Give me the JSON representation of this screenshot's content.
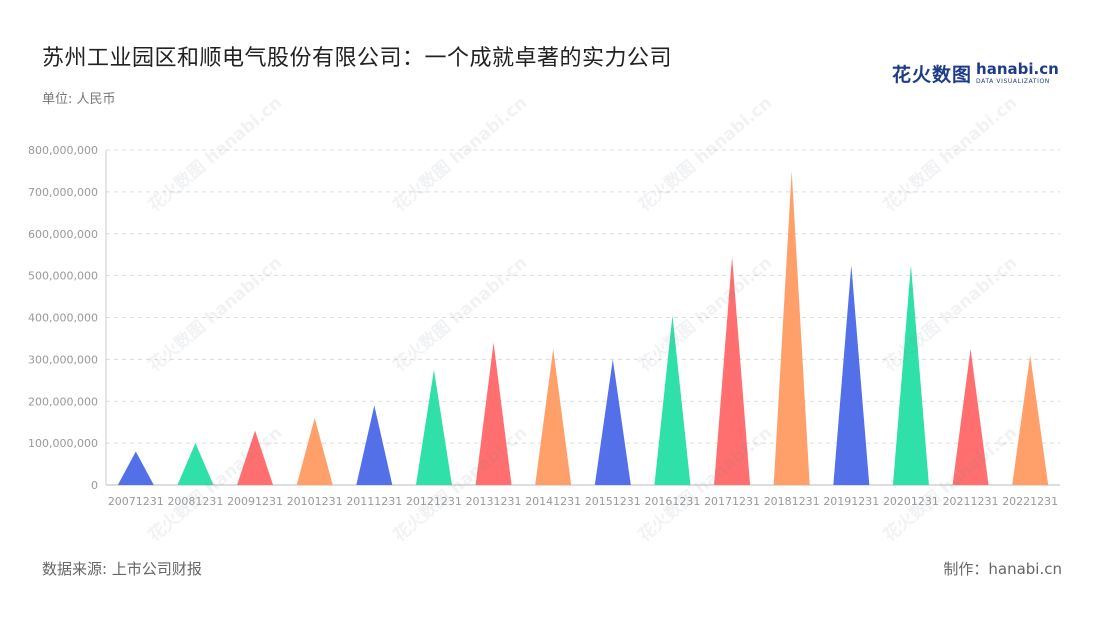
{
  "header": {
    "title": "苏州工业园区和顺电气股份有限公司：一个成就卓著的实力公司",
    "unit": "单位: 人民币"
  },
  "logo": {
    "cn": "花火数图",
    "en": "hanabi.cn",
    "sub": "DATA VISUALIZATION"
  },
  "watermark": "花火数图 hanabi.cn",
  "footer": {
    "source": "数据来源: 上市公司财报",
    "maker": "制作：hanabi.cn"
  },
  "chart_data": {
    "type": "bar",
    "categories": [
      "20071231",
      "20081231",
      "20091231",
      "20101231",
      "20111231",
      "20121231",
      "20131231",
      "20141231",
      "20151231",
      "20161231",
      "20171231",
      "20181231",
      "20191231",
      "20201231",
      "20211231",
      "20221231"
    ],
    "values": [
      80000000,
      100000000,
      130000000,
      160000000,
      190000000,
      275000000,
      340000000,
      325000000,
      300000000,
      405000000,
      545000000,
      750000000,
      525000000,
      525000000,
      325000000,
      310000000
    ],
    "ylim": [
      0,
      800000000
    ],
    "yticks": [
      0,
      100000000,
      200000000,
      300000000,
      400000000,
      500000000,
      600000000,
      700000000,
      800000000
    ],
    "ytick_labels": [
      "0",
      "100,000,000",
      "200,000,000",
      "300,000,000",
      "400,000,000",
      "500,000,000",
      "600,000,000",
      "700,000,000",
      "800,000,000"
    ],
    "colors": [
      "#5470e8",
      "#2fe0a8",
      "#ff6f6f",
      "#ffa06a"
    ],
    "grid": true,
    "bar_shape": "triangle"
  }
}
